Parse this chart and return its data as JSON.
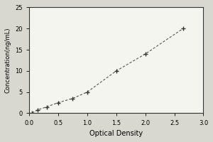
{
  "x_data": [
    0.05,
    0.15,
    0.3,
    0.5,
    0.75,
    1.0,
    1.5,
    2.0,
    2.65
  ],
  "y_data": [
    0.1,
    0.8,
    1.5,
    2.5,
    3.5,
    5.0,
    10.0,
    14.0,
    20.0
  ],
  "xlabel": "Optical Density",
  "ylabel": "Concentration(ng/mL)",
  "xlim": [
    0,
    3
  ],
  "ylim": [
    0,
    25
  ],
  "xticks": [
    0,
    0.5,
    1,
    1.5,
    2,
    2.5,
    3
  ],
  "yticks": [
    0,
    5,
    10,
    15,
    20,
    25
  ],
  "line_color": "#555555",
  "marker_color": "#333333",
  "background_color": "#f5f5f0",
  "figure_facecolor": "#d8d8d0"
}
